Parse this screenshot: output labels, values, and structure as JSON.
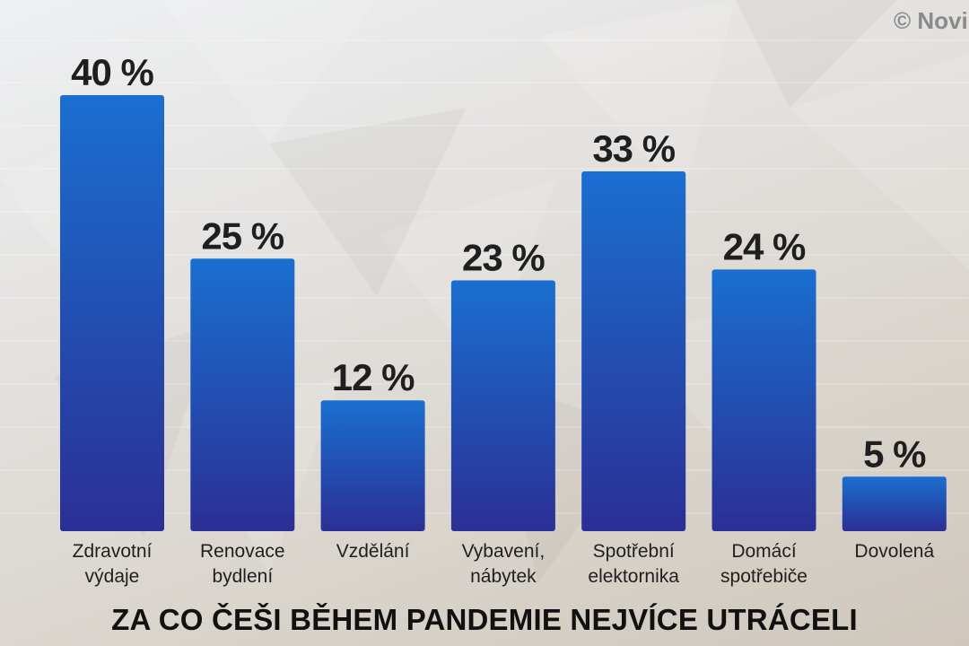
{
  "copyright": "© Novi",
  "colors": {
    "bar_top": "#1a6fd0",
    "bar_bottom": "#2b2f95",
    "text": "#1f1f1f"
  },
  "chart_data": {
    "type": "bar",
    "title": "ZA CO ČEŠI BĚHEM PANDEMIE NEJVÍCE UTRÁCELI",
    "categories": [
      [
        "Zdravotní",
        "výdaje"
      ],
      [
        "Renovace",
        "bydlení"
      ],
      [
        "Vzdělání"
      ],
      [
        "Vybavení,",
        "nábytek"
      ],
      [
        "Spotřební",
        "elektornika"
      ],
      [
        "Domácí",
        "spotřebiče"
      ],
      [
        "Dovolená"
      ]
    ],
    "values": [
      40,
      25,
      12,
      23,
      33,
      24,
      5
    ],
    "data_labels": [
      "40 %",
      "25 %",
      "12 %",
      "23 %",
      "33 %",
      "24 %",
      "5 %"
    ],
    "unit": "%",
    "ylim": [
      0,
      40
    ],
    "grid": false,
    "legend": "none"
  }
}
